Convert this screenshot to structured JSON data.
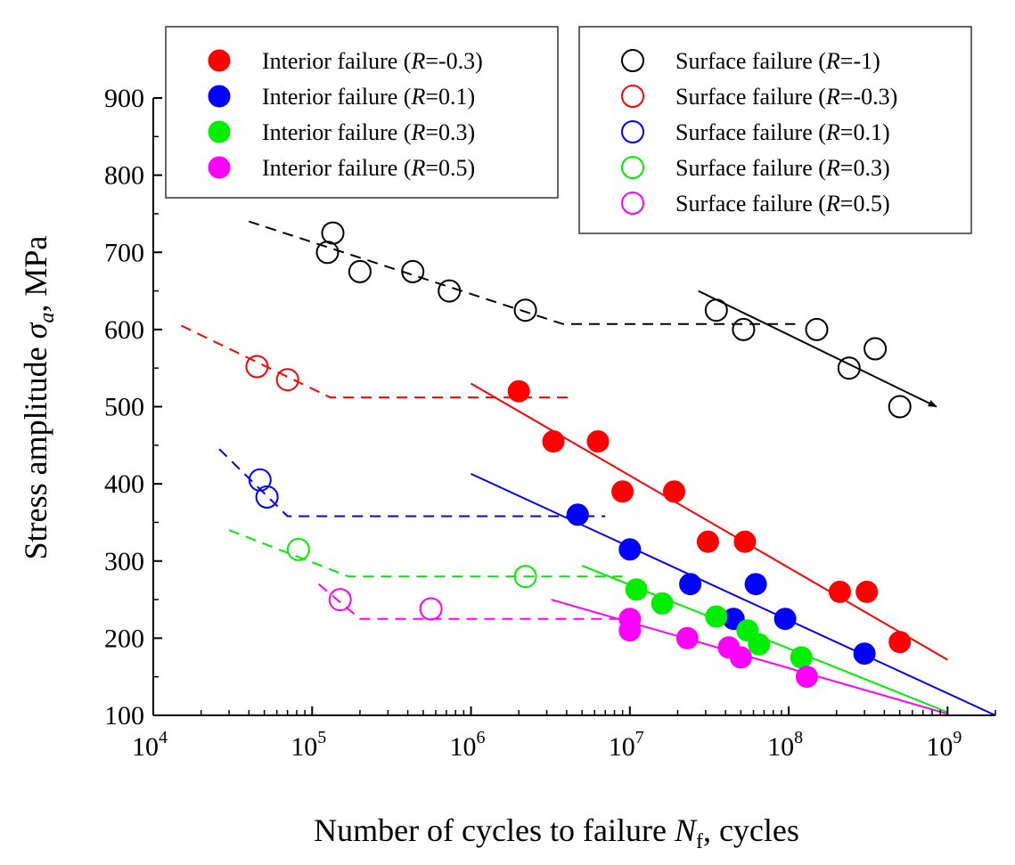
{
  "chart_data": {
    "type": "scatter",
    "xscale": "log",
    "xlim": [
      10000,
      2000000000
    ],
    "ylim": [
      100,
      900
    ],
    "x_ticks": [
      {
        "value": 10000,
        "base": "10",
        "exp": "4"
      },
      {
        "value": 100000,
        "base": "10",
        "exp": "5"
      },
      {
        "value": 1000000,
        "base": "10",
        "exp": "6"
      },
      {
        "value": 10000000,
        "base": "10",
        "exp": "7"
      },
      {
        "value": 100000000,
        "base": "10",
        "exp": "8"
      },
      {
        "value": 1000000000,
        "base": "10",
        "exp": "9"
      }
    ],
    "y_ticks": [
      {
        "value": 100,
        "label": "100"
      },
      {
        "value": 200,
        "label": "200"
      },
      {
        "value": 300,
        "label": "300"
      },
      {
        "value": 400,
        "label": "400"
      },
      {
        "value": 500,
        "label": "500"
      },
      {
        "value": 600,
        "label": "600"
      },
      {
        "value": 700,
        "label": "700"
      },
      {
        "value": 800,
        "label": "800"
      },
      {
        "value": 900,
        "label": "900"
      }
    ],
    "xlabel": {
      "prefix": "Number of cycles to failure ",
      "var": "N",
      "sub": "f",
      "suffix": ", cycles"
    },
    "ylabel": {
      "prefix": "Stress amplitude ",
      "var": "σ",
      "sub": "a",
      "suffix": ", MPa"
    },
    "series": [
      {
        "id": "int-r-03",
        "legend": {
          "prefix": "Interior failure (",
          "var": "R",
          "value": "=-0.3)"
        },
        "color": "#ff0000",
        "marker": "filled",
        "points": [
          [
            2000000,
            520
          ],
          [
            3300000,
            455
          ],
          [
            6300000,
            455
          ],
          [
            9000000,
            390
          ],
          [
            19000000,
            390
          ],
          [
            31000000,
            325
          ],
          [
            53000000,
            325
          ],
          [
            210000000,
            260
          ],
          [
            310000000,
            260
          ],
          [
            500000000,
            195
          ]
        ]
      },
      {
        "id": "int-r-01",
        "legend": {
          "prefix": "Interior failure (",
          "var": "R",
          "value": "=0.1)"
        },
        "color": "#0000ff",
        "marker": "filled",
        "points": [
          [
            4700000,
            360
          ],
          [
            10000000,
            315
          ],
          [
            24000000,
            270
          ],
          [
            62000000,
            270
          ],
          [
            45000000,
            225
          ],
          [
            95000000,
            225
          ],
          [
            300000000,
            180
          ]
        ]
      },
      {
        "id": "int-r-03p",
        "legend": {
          "prefix": "Interior failure (",
          "var": "R",
          "value": "=0.3)"
        },
        "color": "#00ee00",
        "marker": "filled",
        "points": [
          [
            11000000,
            263
          ],
          [
            16000000,
            245
          ],
          [
            35000000,
            228
          ],
          [
            55000000,
            210
          ],
          [
            65000000,
            192
          ],
          [
            120000000,
            175
          ]
        ]
      },
      {
        "id": "int-r-05",
        "legend": {
          "prefix": "Interior failure (",
          "var": "R",
          "value": "=0.5)"
        },
        "color": "#ff00ff",
        "marker": "filled",
        "points": [
          [
            10000000,
            225
          ],
          [
            10000000,
            210
          ],
          [
            23000000,
            200
          ],
          [
            42000000,
            188
          ],
          [
            50000000,
            175
          ],
          [
            130000000,
            150
          ]
        ]
      },
      {
        "id": "surf-r-m1",
        "legend": {
          "prefix": "Surface failure (",
          "var": "R",
          "value": "=-1)"
        },
        "color": "#000000",
        "marker": "open",
        "points": [
          [
            135000,
            725
          ],
          [
            125000,
            700
          ],
          [
            200000,
            675
          ],
          [
            430000,
            675
          ],
          [
            730000,
            650
          ],
          [
            2200000,
            625
          ],
          [
            35000000,
            625
          ],
          [
            52000000,
            600
          ],
          [
            150000000,
            600
          ],
          [
            240000000,
            550
          ],
          [
            350000000,
            575
          ],
          [
            500000000,
            500
          ]
        ]
      },
      {
        "id": "surf-r-m03",
        "legend": {
          "prefix": "Surface failure (",
          "var": "R",
          "value": "=-0.3)"
        },
        "color": "#ff0000",
        "marker": "open",
        "points": [
          [
            45000,
            552
          ],
          [
            70000,
            535
          ]
        ]
      },
      {
        "id": "surf-r-01",
        "legend": {
          "prefix": "Surface failure (",
          "var": "R",
          "value": "=0.1)"
        },
        "color": "#0000ff",
        "marker": "open",
        "points": [
          [
            47000,
            405
          ],
          [
            52000,
            383
          ]
        ]
      },
      {
        "id": "surf-r-03",
        "legend": {
          "prefix": "Surface failure (",
          "var": "R",
          "value": "=0.3)"
        },
        "color": "#00ee00",
        "marker": "open",
        "points": [
          [
            82000,
            315
          ],
          [
            2200000,
            280
          ]
        ]
      },
      {
        "id": "surf-r-05",
        "legend": {
          "prefix": "Surface failure (",
          "var": "R",
          "value": "=0.5)"
        },
        "color": "#ff00ff",
        "marker": "open",
        "points": [
          [
            150000,
            250
          ],
          [
            560000,
            238
          ]
        ]
      }
    ],
    "fit_lines": [
      {
        "color": "#000000",
        "style": "dashed",
        "points": [
          [
            40000,
            740
          ],
          [
            3800000,
            607
          ],
          [
            110000000,
            607
          ]
        ]
      },
      {
        "color": "#000000",
        "style": "solid",
        "points": [
          [
            27000000,
            650
          ],
          [
            850000000,
            500
          ]
        ],
        "arrow": true
      },
      {
        "color": "#ff0000",
        "style": "dashed",
        "points": [
          [
            15000,
            605
          ],
          [
            130000,
            512
          ],
          [
            4300000,
            512
          ]
        ]
      },
      {
        "color": "#ff0000",
        "style": "solid",
        "points": [
          [
            1000000,
            530
          ],
          [
            1000000000,
            172
          ]
        ]
      },
      {
        "color": "#0000ff",
        "style": "dashed",
        "points": [
          [
            26000,
            445
          ],
          [
            70000,
            358
          ],
          [
            7000000,
            358
          ]
        ]
      },
      {
        "color": "#0000ff",
        "style": "solid",
        "points": [
          [
            1000000,
            413
          ],
          [
            2000000000,
            100
          ]
        ]
      },
      {
        "color": "#00ee00",
        "style": "dashed",
        "points": [
          [
            30000,
            340
          ],
          [
            170000,
            280
          ],
          [
            9000000,
            280
          ]
        ]
      },
      {
        "color": "#00ee00",
        "style": "solid",
        "points": [
          [
            5000000,
            294
          ],
          [
            1000000000,
            104
          ]
        ]
      },
      {
        "color": "#ff00ff",
        "style": "dashed",
        "points": [
          [
            110000,
            270
          ],
          [
            200000,
            225
          ],
          [
            10000000,
            225
          ]
        ]
      },
      {
        "color": "#ff00ff",
        "style": "solid",
        "points": [
          [
            3200000,
            250
          ],
          [
            1000000000,
            102
          ]
        ]
      }
    ],
    "legends": [
      {
        "position": "top-left",
        "series": [
          "int-r-03",
          "int-r-01",
          "int-r-03p",
          "int-r-05"
        ]
      },
      {
        "position": "top-right",
        "series": [
          "surf-r-m1",
          "surf-r-m03",
          "surf-r-01",
          "surf-r-03",
          "surf-r-05"
        ]
      }
    ]
  }
}
